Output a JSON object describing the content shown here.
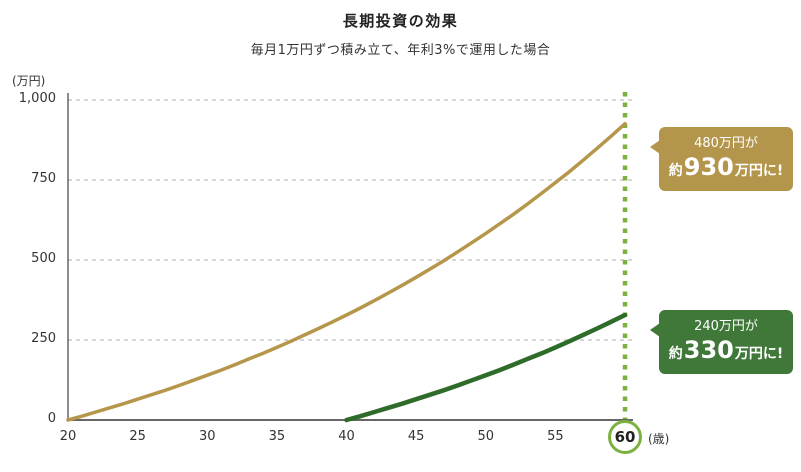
{
  "title": "長期投資の効果",
  "subtitle": "毎月1万円ずつ積み立て、年利3%で運用した場合",
  "y_axis_unit": "(万円)",
  "x_axis_unit": "(歳)",
  "highlight_age": "60",
  "colors": {
    "gold": "#B5964A",
    "green": "#2F6C2A",
    "accent_green": "#7CB13F",
    "gold_bubble": "#B3954C",
    "green_bubble": "#3F7839",
    "gridline": "#C8C8C8",
    "axis": "#666666"
  },
  "callouts": {
    "gold": {
      "line1": "480万円が",
      "prefix": "約",
      "value": "930",
      "suffix": "万円に!"
    },
    "green": {
      "line1": "240万円が",
      "prefix": "約",
      "value": "330",
      "suffix": "万円に!"
    }
  },
  "chart_data": {
    "type": "line",
    "title": "長期投資の効果",
    "subtitle": "毎月1万円ずつ積み立て、年利3%で運用した場合",
    "xlabel": "(歳)",
    "ylabel": "(万円)",
    "xlim": [
      20,
      60
    ],
    "ylim": [
      0,
      1000
    ],
    "x_ticks": [
      20,
      25,
      30,
      35,
      40,
      45,
      50,
      55,
      60
    ],
    "y_ticks": [
      {
        "label": "0",
        "value": 0
      },
      {
        "label": "250",
        "value": 250
      },
      {
        "label": "500",
        "value": 500
      },
      {
        "label": "750",
        "value": 750
      },
      {
        "label": "1,000",
        "value": 1000
      }
    ],
    "grid": "dashed-horizontal",
    "legend": "none",
    "vertical_marker_x": 60,
    "series": [
      {
        "name": "480万円→約930万円",
        "color": "#B5964A",
        "x": [
          20,
          21,
          22,
          23,
          24,
          25,
          26,
          27,
          28,
          29,
          30,
          31,
          32,
          33,
          34,
          35,
          36,
          37,
          38,
          39,
          40,
          41,
          42,
          43,
          44,
          45,
          46,
          47,
          48,
          49,
          50,
          51,
          52,
          53,
          54,
          55,
          56,
          57,
          58,
          59,
          60
        ],
        "y": [
          0,
          12,
          25,
          38,
          51,
          65,
          79,
          93,
          108,
          124,
          140,
          156,
          173,
          191,
          208,
          227,
          246,
          266,
          286,
          307,
          328,
          350,
          373,
          397,
          421,
          446,
          472,
          498,
          526,
          554,
          583,
          613,
          643,
          675,
          708,
          742,
          776,
          812,
          849,
          887,
          926
        ]
      },
      {
        "name": "240万円→約330万円",
        "color": "#2F6C2A",
        "x": [
          40,
          41,
          42,
          43,
          44,
          45,
          46,
          47,
          48,
          49,
          50,
          51,
          52,
          53,
          54,
          55,
          56,
          57,
          58,
          59,
          60
        ],
        "y": [
          0,
          12,
          25,
          38,
          51,
          65,
          79,
          93,
          108,
          124,
          140,
          156,
          173,
          191,
          208,
          227,
          246,
          266,
          286,
          307,
          328
        ]
      }
    ]
  }
}
